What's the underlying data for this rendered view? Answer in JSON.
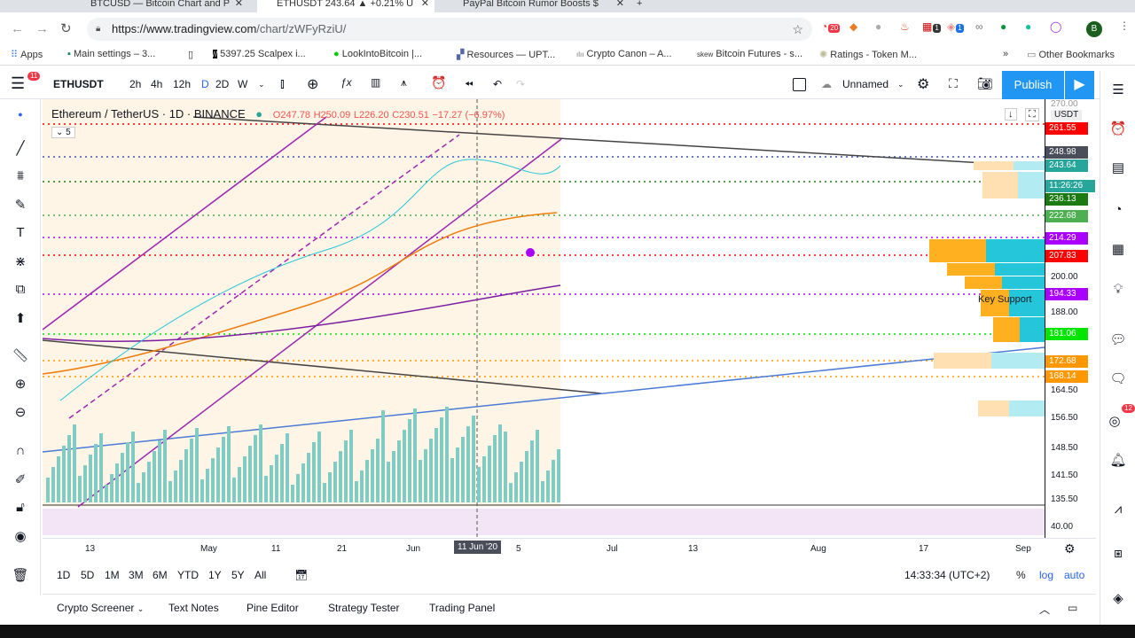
{
  "browser": {
    "tabs": [
      {
        "title": "BTCUSD — Bitcoin Chart and P"
      },
      {
        "title": "ETHUSDT 243.64 ▲ +0.21% U"
      },
      {
        "title": "PayPal Bitcoin Rumor Boosts $"
      }
    ],
    "url_host": "https://www.tradingview.com",
    "url_path": "/chart/zWFyRziU/",
    "bookmarks": [
      "Apps",
      "Main settings – 3...",
      "5397.25 Scalpex i...",
      "LookIntoBitcoin |...",
      "Resources — UPT...",
      "Crypto Canon – A...",
      "Bitcoin Futures - s...",
      "Ratings - Token M..."
    ],
    "other_bookmarks": "Other Bookmarks",
    "extension_badges": [
      "20",
      "1",
      "1"
    ],
    "profile": "B"
  },
  "toolbar": {
    "menu_badge": "11",
    "symbol": "ETHUSDT",
    "intervals": [
      "2h",
      "4h",
      "12h",
      "D",
      "2D",
      "W"
    ],
    "active_interval": "D",
    "layout_name": "Unnamed",
    "publish": "Publish"
  },
  "legend": {
    "title": "Ethereum / TetherUS · 1D · BINANCE",
    "open": "O247.78",
    "high": "H250.09",
    "low": "L226.20",
    "close": "C230.51",
    "change": "−17.27 (−6.97%)",
    "indicator_count": "5"
  },
  "annotation": "Key Support",
  "price_axis": {
    "currency": "USDT",
    "ticks": [
      "270.00",
      "200.00",
      "188.00",
      "164.50",
      "156.50",
      "148.50",
      "141.50",
      "135.50",
      "40.00"
    ],
    "labels": [
      {
        "value": "261.55",
        "color": "#ff0000"
      },
      {
        "value": "248.98",
        "color": "#4a4e5a"
      },
      {
        "value": "243.64",
        "color": "#26a69a"
      },
      {
        "value": "11:26:26",
        "color": "#26a69a"
      },
      {
        "value": "236.13",
        "color": "#1b7a12"
      },
      {
        "value": "222.68",
        "color": "#4caf50"
      },
      {
        "value": "214.29",
        "color": "#aa00ff"
      },
      {
        "value": "207.83",
        "color": "#ff0000"
      },
      {
        "value": "194.33",
        "color": "#aa00ff"
      },
      {
        "value": "181.06",
        "color": "#00e600"
      },
      {
        "value": "172.68",
        "color": "#ff9800"
      },
      {
        "value": "168.14",
        "color": "#ff9800"
      }
    ]
  },
  "time_axis": {
    "ticks": [
      "13",
      "May",
      "11",
      "21",
      "Jun",
      "5",
      "Jul",
      "13",
      "Aug",
      "17",
      "Sep"
    ],
    "crosshair": "11 Jun '20"
  },
  "range_bar": {
    "ranges": [
      "1D",
      "5D",
      "1M",
      "3M",
      "6M",
      "YTD",
      "1Y",
      "5Y",
      "All"
    ],
    "clock": "14:33:34 (UTC+2)",
    "percent": "%",
    "log": "log",
    "auto": "auto"
  },
  "bottom_tabs": [
    "Crypto Screener",
    "Text Notes",
    "Pine Editor",
    "Strategy Tester",
    "Trading Panel"
  ],
  "right_sidebar": {
    "alerts_badge": "12"
  },
  "colors": {
    "accent": "#2962ff",
    "up": "#26a69a",
    "down": "#ef5350"
  }
}
